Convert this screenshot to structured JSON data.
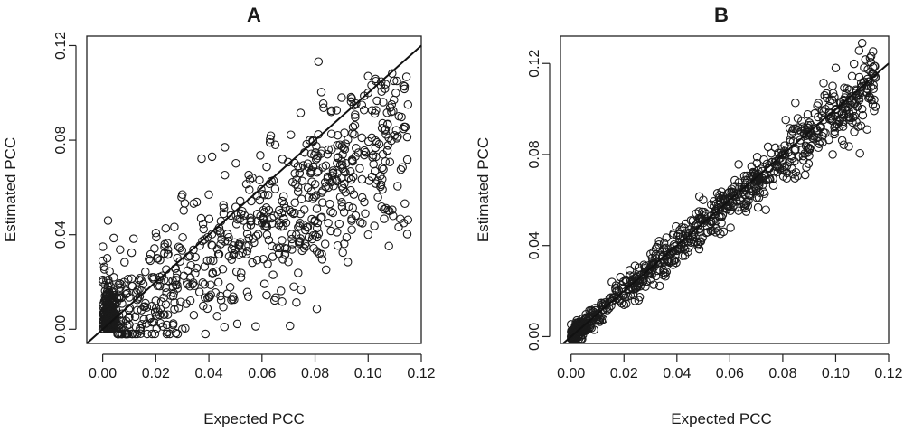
{
  "chart_data": [
    {
      "type": "scatter",
      "title": "A",
      "xlabel": "Expected PCC",
      "ylabel": "Estimated PCC",
      "xlim": [
        -0.006,
        0.12
      ],
      "ylim": [
        -0.006,
        0.124
      ],
      "xticks": [
        "0.00",
        "0.02",
        "0.04",
        "0.06",
        "0.08",
        "0.10",
        "0.12"
      ],
      "yticks": [
        "0.00",
        "0.04",
        "0.08",
        "0.12"
      ],
      "grid": false,
      "reference_line": {
        "slope": 1,
        "intercept": 0
      },
      "description_of_cloud": {
        "n_points": 900,
        "x_max": 0.115,
        "slope": 0.72,
        "spread_small_x": 0.012,
        "spread_large_x": 0.02
      },
      "series": [
        {
          "values_sample": [
            [
              0.0,
              0.0
            ],
            [
              0.0,
              0.02
            ],
            [
              0.0,
              0.029
            ],
            [
              0.002,
              0.046
            ],
            [
              0.01,
              0.002
            ],
            [
              0.02,
              0.012
            ],
            [
              0.03,
              0.057
            ],
            [
              0.03,
              0.0
            ],
            [
              0.046,
              0.077
            ],
            [
              0.06,
              0.045
            ],
            [
              0.065,
              0.078
            ],
            [
              0.072,
              0.018
            ],
            [
              0.078,
              0.08
            ],
            [
              0.09,
              0.098
            ],
            [
              0.1,
              0.1
            ],
            [
              0.1,
              0.04
            ],
            [
              0.108,
              0.05
            ],
            [
              0.115,
              0.095
            ],
            [
              0.11,
              0.082
            ],
            [
              0.085,
              0.06
            ]
          ]
        }
      ]
    },
    {
      "type": "scatter",
      "title": "B",
      "xlabel": "Expected PCC",
      "ylabel": "Estimated PCC",
      "xlim": [
        -0.004,
        0.12
      ],
      "ylim": [
        -0.003,
        0.132
      ],
      "xticks": [
        "0.00",
        "0.02",
        "0.04",
        "0.06",
        "0.08",
        "0.10",
        "0.12"
      ],
      "yticks": [
        "0.00",
        "0.04",
        "0.08",
        "0.12"
      ],
      "grid": false,
      "reference_line": {
        "slope": 1,
        "intercept": 0
      },
      "description_of_cloud": {
        "n_points": 900,
        "x_max": 0.115,
        "slope": 0.98,
        "spread_small_x": 0.002,
        "spread_large_x": 0.008
      },
      "series": [
        {
          "values_sample": [
            [
              0.0,
              0.0
            ],
            [
              0.005,
              0.004
            ],
            [
              0.01,
              0.01
            ],
            [
              0.02,
              0.018
            ],
            [
              0.03,
              0.028
            ],
            [
              0.04,
              0.04
            ],
            [
              0.05,
              0.05
            ],
            [
              0.06,
              0.06
            ],
            [
              0.07,
              0.07
            ],
            [
              0.08,
              0.08
            ],
            [
              0.09,
              0.09
            ],
            [
              0.1,
              0.1
            ],
            [
              0.11,
              0.129
            ],
            [
              0.1,
              0.118
            ],
            [
              0.11,
              0.1
            ],
            [
              0.115,
              0.101
            ]
          ]
        }
      ]
    }
  ]
}
